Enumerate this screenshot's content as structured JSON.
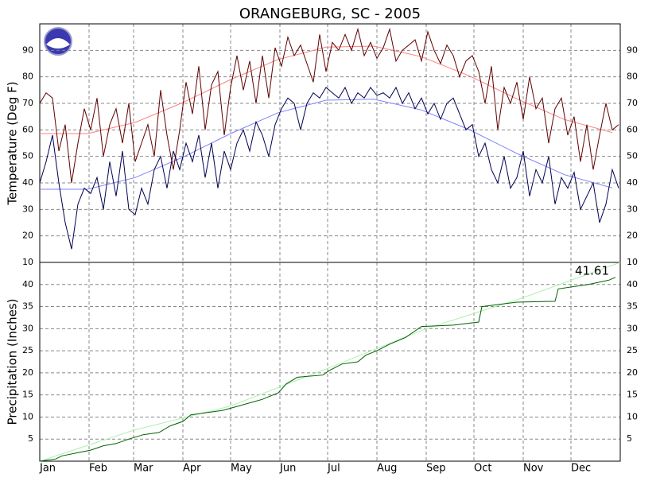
{
  "chart_data": [
    {
      "type": "line",
      "title": "ORANGEBURG, SC - 2005",
      "y_label": "Temperature (Deg F)",
      "xlim": [
        0,
        365
      ],
      "ylim": [
        10,
        100
      ],
      "yticks": [
        10,
        20,
        30,
        40,
        50,
        60,
        70,
        80,
        90
      ],
      "grid": true,
      "series": [
        {
          "color": "#ff8080",
          "x": [
            0,
            30,
            60,
            90,
            120,
            150,
            180,
            210,
            240,
            270,
            300,
            330,
            360
          ],
          "values": [
            58.6,
            58.6,
            62.8,
            70.3,
            79.0,
            86.6,
            91.2,
            91.6,
            87.6,
            80.4,
            71.7,
            63.9,
            59.0
          ]
        },
        {
          "color": "#8080ff",
          "x": [
            0,
            30,
            60,
            90,
            120,
            150,
            180,
            210,
            240,
            270,
            300,
            330,
            360
          ],
          "values": [
            37.6,
            37.6,
            42.0,
            49.7,
            58.6,
            66.5,
            71.2,
            71.6,
            67.5,
            60.1,
            51.1,
            43.1,
            38.1
          ]
        },
        {
          "color": "#600000",
          "x": [
            0,
            4,
            8,
            12,
            16,
            20,
            24,
            28,
            32,
            36,
            40,
            44,
            48,
            52,
            56,
            60,
            64,
            68,
            72,
            76,
            80,
            84,
            88,
            92,
            96,
            100,
            104,
            108,
            112,
            116,
            120,
            124,
            128,
            132,
            136,
            140,
            144,
            148,
            152,
            156,
            160,
            164,
            168,
            172,
            176,
            180,
            184,
            188,
            192,
            196,
            200,
            204,
            208,
            212,
            216,
            220,
            224,
            228,
            232,
            236,
            240,
            244,
            248,
            252,
            256,
            260,
            264,
            268,
            272,
            276,
            280,
            284,
            288,
            292,
            296,
            300,
            304,
            308,
            312,
            316,
            320,
            324,
            328,
            332,
            336,
            340,
            344,
            348,
            352,
            356,
            360,
            364
          ],
          "values": [
            70,
            74,
            72,
            52,
            62,
            40,
            55,
            68,
            60,
            72,
            50,
            62,
            68,
            55,
            70,
            48,
            55,
            62,
            50,
            75,
            58,
            45,
            60,
            78,
            66,
            84,
            60,
            77,
            82,
            58,
            76,
            88,
            75,
            86,
            70,
            88,
            72,
            91,
            84,
            95,
            88,
            92,
            85,
            78,
            96,
            82,
            93,
            90,
            96,
            90,
            98,
            88,
            93,
            87,
            91,
            98,
            86,
            90,
            92,
            94,
            86,
            97,
            90,
            85,
            92,
            88,
            80,
            86,
            88,
            82,
            70,
            84,
            60,
            76,
            70,
            78,
            64,
            80,
            68,
            72,
            55,
            68,
            72,
            58,
            65,
            48,
            62,
            45,
            58,
            70,
            60,
            62
          ]
        },
        {
          "color": "#000050",
          "x": [
            0,
            4,
            8,
            12,
            16,
            20,
            24,
            28,
            32,
            36,
            40,
            44,
            48,
            52,
            56,
            60,
            64,
            68,
            72,
            76,
            80,
            84,
            88,
            92,
            96,
            100,
            104,
            108,
            112,
            116,
            120,
            124,
            128,
            132,
            136,
            140,
            144,
            148,
            152,
            156,
            160,
            164,
            168,
            172,
            176,
            180,
            184,
            188,
            192,
            196,
            200,
            204,
            208,
            212,
            216,
            220,
            224,
            228,
            232,
            236,
            240,
            244,
            248,
            252,
            256,
            260,
            264,
            268,
            272,
            276,
            280,
            284,
            288,
            292,
            296,
            300,
            304,
            308,
            312,
            316,
            320,
            324,
            328,
            332,
            336,
            340,
            344,
            348,
            352,
            356,
            360,
            364
          ],
          "values": [
            40,
            48,
            58,
            40,
            25,
            15,
            32,
            38,
            36,
            42,
            30,
            48,
            35,
            52,
            30,
            28,
            38,
            32,
            45,
            50,
            38,
            52,
            45,
            55,
            48,
            58,
            42,
            55,
            38,
            52,
            45,
            55,
            60,
            52,
            63,
            58,
            50,
            62,
            68,
            72,
            70,
            60,
            70,
            74,
            72,
            76,
            74,
            72,
            76,
            70,
            74,
            72,
            76,
            73,
            74,
            72,
            76,
            70,
            74,
            68,
            72,
            66,
            70,
            64,
            70,
            72,
            66,
            60,
            62,
            50,
            55,
            45,
            40,
            50,
            38,
            42,
            52,
            35,
            45,
            40,
            50,
            32,
            42,
            38,
            44,
            30,
            35,
            40,
            25,
            32,
            45,
            38
          ]
        }
      ]
    },
    {
      "type": "line",
      "y_label": "Precipitation (Inches)",
      "annotation": "41.61",
      "xlim": [
        0,
        365
      ],
      "ylim": [
        0,
        45
      ],
      "yticks": [
        5,
        10,
        15,
        20,
        25,
        30,
        35,
        40
      ],
      "grid": true,
      "xticks": [
        {
          "value": 0,
          "label": "Jan"
        },
        {
          "value": 31,
          "label": "Feb"
        },
        {
          "value": 59,
          "label": "Mar"
        },
        {
          "value": 90,
          "label": "Apr"
        },
        {
          "value": 120,
          "label": "May"
        },
        {
          "value": 151,
          "label": "Jun"
        },
        {
          "value": 181,
          "label": "Jul"
        },
        {
          "value": 212,
          "label": "Aug"
        },
        {
          "value": 243,
          "label": "Sep"
        },
        {
          "value": 273,
          "label": "Oct"
        },
        {
          "value": 304,
          "label": "Nov"
        },
        {
          "value": 334,
          "label": "Dec"
        }
      ],
      "series": [
        {
          "color": "#b0f0b0",
          "x": [
            0,
            59,
            120,
            181,
            212,
            243,
            304,
            365
          ],
          "values": [
            0,
            7,
            12.5,
            21,
            25.5,
            30,
            37,
            45
          ]
        },
        {
          "color": "#006000",
          "x": [
            0,
            10,
            14,
            25,
            32,
            40,
            48,
            56,
            65,
            75,
            82,
            90,
            95,
            105,
            115,
            125,
            135,
            140,
            150,
            155,
            162,
            178,
            182,
            190,
            200,
            205,
            212,
            220,
            230,
            240,
            260,
            276,
            278,
            300,
            324,
            326,
            345,
            358,
            362
          ],
          "values": [
            0,
            0.5,
            1.2,
            2,
            2.5,
            3.5,
            4,
            5,
            6,
            6.5,
            8,
            9,
            10.5,
            11,
            11.5,
            12.5,
            13.5,
            14,
            15.5,
            17.5,
            19,
            19.5,
            20.5,
            22,
            22.5,
            24,
            25,
            26.5,
            28,
            30.5,
            30.8,
            31.5,
            35,
            36,
            36.2,
            39,
            40,
            41,
            41.61
          ]
        }
      ]
    }
  ]
}
